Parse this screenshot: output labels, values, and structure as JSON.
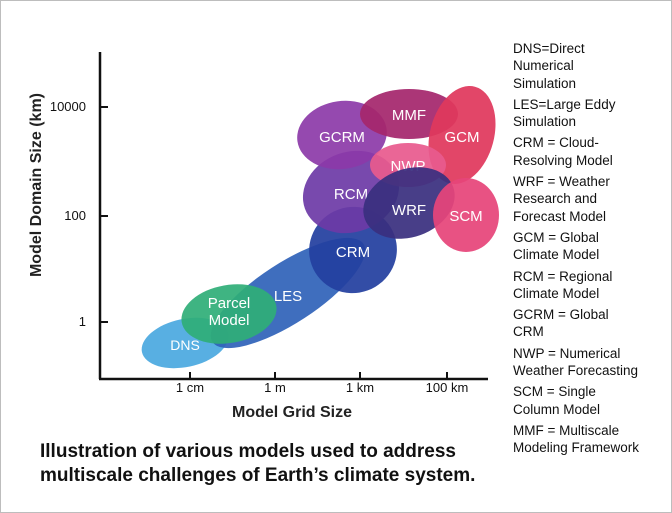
{
  "diagram": {
    "y_axis_title": "Model Domain Size (km)",
    "x_axis_title": "Model Grid Size",
    "y_ticks": [
      "10000",
      "100",
      "1"
    ],
    "x_ticks": [
      "1 cm",
      "1 m",
      "1 km",
      "100 km"
    ],
    "caption_lines": [
      "Illustration of various models used to address",
      "multiscale challenges of Earth’s climate system."
    ],
    "models": [
      {
        "id": "dns",
        "lines": [
          "DNS"
        ],
        "color": "#4aa8e0"
      },
      {
        "id": "les",
        "lines": [
          "LES"
        ],
        "color": "#2f62b8"
      },
      {
        "id": "parcel",
        "lines": [
          "Parcel",
          "Model"
        ],
        "color": "#2fae77"
      },
      {
        "id": "crm",
        "lines": [
          "CRM"
        ],
        "color": "#233f9f"
      },
      {
        "id": "rcm",
        "lines": [
          "RCM"
        ],
        "color": "#6c3aa6"
      },
      {
        "id": "gcrm",
        "lines": [
          "GCRM"
        ],
        "color": "#8c3aa8"
      },
      {
        "id": "mmf",
        "lines": [
          "MMF"
        ],
        "color": "#a5276d"
      },
      {
        "id": "gcm",
        "lines": [
          "GCM"
        ],
        "color": "#e0385c"
      },
      {
        "id": "nwp",
        "lines": [
          "NWP"
        ],
        "color": "#e85a8e"
      },
      {
        "id": "wrf",
        "lines": [
          "WRF"
        ],
        "color": "#3a2f7f"
      },
      {
        "id": "scm",
        "lines": [
          "SCM"
        ],
        "color": "#e6457a"
      }
    ],
    "legend": [
      {
        "lines": [
          "DNS=Direct",
          "Numerical",
          "Simulation"
        ]
      },
      {
        "lines": [
          "LES=Large Eddy",
          "Simulation"
        ]
      },
      {
        "lines": [
          "CRM = Cloud-",
          "Resolving Model"
        ]
      },
      {
        "lines": [
          "WRF = Weather",
          "Research and",
          "Forecast Model"
        ]
      },
      {
        "lines": [
          "GCM = Global",
          "Climate Model"
        ]
      },
      {
        "lines": [
          "RCM = Regional",
          "Climate Model"
        ]
      },
      {
        "lines": [
          "GCRM = Global",
          "CRM"
        ]
      },
      {
        "lines": [
          "NWP = Numerical",
          "Weather Forecasting"
        ]
      },
      {
        "lines": [
          "SCM = Single",
          "Column Model"
        ]
      },
      {
        "lines": [
          "MMF = Multiscale",
          "Modeling Framework"
        ]
      }
    ]
  }
}
